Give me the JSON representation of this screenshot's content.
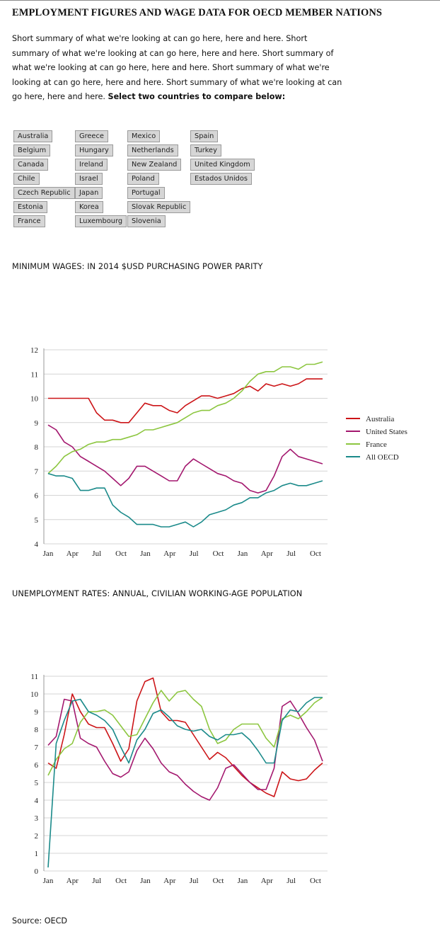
{
  "page": {
    "title": "EMPLOYMENT FIGURES AND WAGE DATA FOR OECD MEMBER NATIONS",
    "summary": "Short summary of what we're looking at can go here, here and here. Short summary of what we're looking at can go here, here and here. Short summary of what we're looking at can go here, here and here. Short summary of what we're looking at can go here, here and here. Short summary of what we're looking at can go here, here and here.",
    "instruction": "Select two countries to compare below:",
    "source": "Source: OECD"
  },
  "countries": [
    [
      "Australia",
      "Belgium",
      "Canada",
      "Chile",
      "Czech Republic",
      "Estonia",
      "France"
    ],
    [
      "Greece",
      "Hungary",
      "Ireland",
      "Israel",
      "Japan",
      "Korea",
      "Luxembourg"
    ],
    [
      "Mexico",
      "Netherlands",
      "New Zealand",
      "Poland",
      "Portugal",
      "Slovak Republic",
      "Slovenia"
    ],
    [
      "Spain",
      "Turkey",
      "United Kingdom",
      "Estados Unidos"
    ]
  ],
  "colors": {
    "Australia": "#cc1417",
    "United States": "#a3176e",
    "France": "#8cc63f",
    "All OECD": "#1a8a8a"
  },
  "chart_data": [
    {
      "type": "line",
      "title": "MINIMUM WAGES: IN 2014 $USD PURCHASING POWER PARITY",
      "xlabel": "",
      "ylabel": "",
      "ylim": [
        4,
        12
      ],
      "yticks": [
        4,
        5,
        6,
        7,
        8,
        9,
        10,
        11,
        12
      ],
      "xtick_labels": [
        "Jan",
        "Apr",
        "Jul",
        "Oct",
        "Jan",
        "Apr",
        "Jul",
        "Oct",
        "Jan",
        "Apr",
        "Jul",
        "Oct"
      ],
      "grid": true,
      "legend": "right",
      "series": [
        {
          "name": "Australia",
          "values": [
            10.0,
            10.0,
            10.0,
            10.0,
            10.0,
            10.0,
            9.4,
            9.1,
            9.1,
            9.0,
            9.0,
            9.4,
            9.8,
            9.7,
            9.7,
            9.5,
            9.4,
            9.7,
            9.9,
            10.1,
            10.1,
            10.0,
            10.1,
            10.2,
            10.4,
            10.5,
            10.3,
            10.6,
            10.5,
            10.6,
            10.5,
            10.6,
            10.8,
            10.8,
            10.8
          ]
        },
        {
          "name": "United States",
          "values": [
            8.9,
            8.7,
            8.2,
            8.0,
            7.6,
            7.4,
            7.2,
            7.0,
            6.7,
            6.4,
            6.7,
            7.2,
            7.2,
            7.0,
            6.8,
            6.6,
            6.6,
            7.2,
            7.5,
            7.3,
            7.1,
            6.9,
            6.8,
            6.6,
            6.5,
            6.2,
            6.1,
            6.2,
            6.8,
            7.6,
            7.9,
            7.6,
            7.5,
            7.4,
            7.3
          ]
        },
        {
          "name": "France",
          "values": [
            6.9,
            7.2,
            7.6,
            7.8,
            7.9,
            8.1,
            8.2,
            8.2,
            8.3,
            8.3,
            8.4,
            8.5,
            8.7,
            8.7,
            8.8,
            8.9,
            9.0,
            9.2,
            9.4,
            9.5,
            9.5,
            9.7,
            9.8,
            10.0,
            10.3,
            10.7,
            11.0,
            11.1,
            11.1,
            11.3,
            11.3,
            11.2,
            11.4,
            11.4,
            11.5
          ]
        },
        {
          "name": "All OECD",
          "values": [
            6.9,
            6.8,
            6.8,
            6.7,
            6.2,
            6.2,
            6.3,
            6.3,
            5.6,
            5.3,
            5.1,
            4.8,
            4.8,
            4.8,
            4.7,
            4.7,
            4.8,
            4.9,
            4.7,
            4.9,
            5.2,
            5.3,
            5.4,
            5.6,
            5.7,
            5.9,
            5.9,
            6.1,
            6.2,
            6.4,
            6.5,
            6.4,
            6.4,
            6.5,
            6.6
          ]
        }
      ]
    },
    {
      "type": "line",
      "title": "UNEMPLOYMENT RATES: ANNUAL, CIVILIAN WORKING-AGE POPULATION",
      "xlabel": "",
      "ylabel": "",
      "ylim": [
        0,
        11
      ],
      "yticks": [
        0,
        1,
        2,
        3,
        4,
        5,
        6,
        7,
        8,
        9,
        10,
        11
      ],
      "xtick_labels": [
        "Jan",
        "Apr",
        "Jul",
        "Oct",
        "Jan",
        "Apr",
        "Jul",
        "Oct",
        "Jan",
        "Apr",
        "Jul",
        "Oct"
      ],
      "grid": true,
      "legend": "none",
      "series": [
        {
          "name": "Australia",
          "values": [
            6.1,
            5.8,
            7.7,
            10.0,
            9.0,
            8.3,
            8.1,
            8.1,
            7.2,
            6.2,
            6.9,
            9.6,
            10.7,
            10.9,
            9.0,
            8.5,
            8.5,
            8.4,
            7.7,
            7.0,
            6.3,
            6.7,
            6.4,
            5.9,
            5.4,
            5.0,
            4.7,
            4.4,
            4.2,
            5.6,
            5.2,
            5.1,
            5.2,
            5.7,
            6.1
          ]
        },
        {
          "name": "United States",
          "values": [
            7.1,
            7.6,
            9.7,
            9.6,
            7.5,
            7.2,
            7.0,
            6.2,
            5.5,
            5.3,
            5.6,
            6.8,
            7.5,
            6.9,
            6.1,
            5.6,
            5.4,
            4.9,
            4.5,
            4.2,
            4.0,
            4.7,
            5.8,
            6.0,
            5.5,
            5.0,
            4.6,
            4.6,
            5.8,
            9.3,
            9.6,
            8.9,
            8.1,
            7.4,
            6.2
          ]
        },
        {
          "name": "France",
          "values": [
            5.4,
            6.3,
            6.9,
            7.2,
            8.4,
            9.0,
            9.0,
            9.1,
            8.8,
            8.2,
            7.6,
            7.7,
            8.6,
            9.5,
            10.2,
            9.6,
            10.1,
            10.2,
            9.7,
            9.3,
            8.0,
            7.2,
            7.4,
            8.0,
            8.3,
            8.3,
            8.3,
            7.5,
            7.0,
            8.6,
            8.8,
            8.6,
            9.0,
            9.5,
            9.8
          ]
        },
        {
          "name": "All OECD",
          "values": [
            0.2,
            7.2,
            8.5,
            9.6,
            9.7,
            9.0,
            8.8,
            8.5,
            8.0,
            7.0,
            6.1,
            7.4,
            8.0,
            8.9,
            9.1,
            8.7,
            8.2,
            8.0,
            7.9,
            8.0,
            7.6,
            7.4,
            7.7,
            7.7,
            7.8,
            7.4,
            6.8,
            6.1,
            6.1,
            8.5,
            9.1,
            9.0,
            9.5,
            9.8,
            9.8
          ]
        }
      ]
    }
  ]
}
